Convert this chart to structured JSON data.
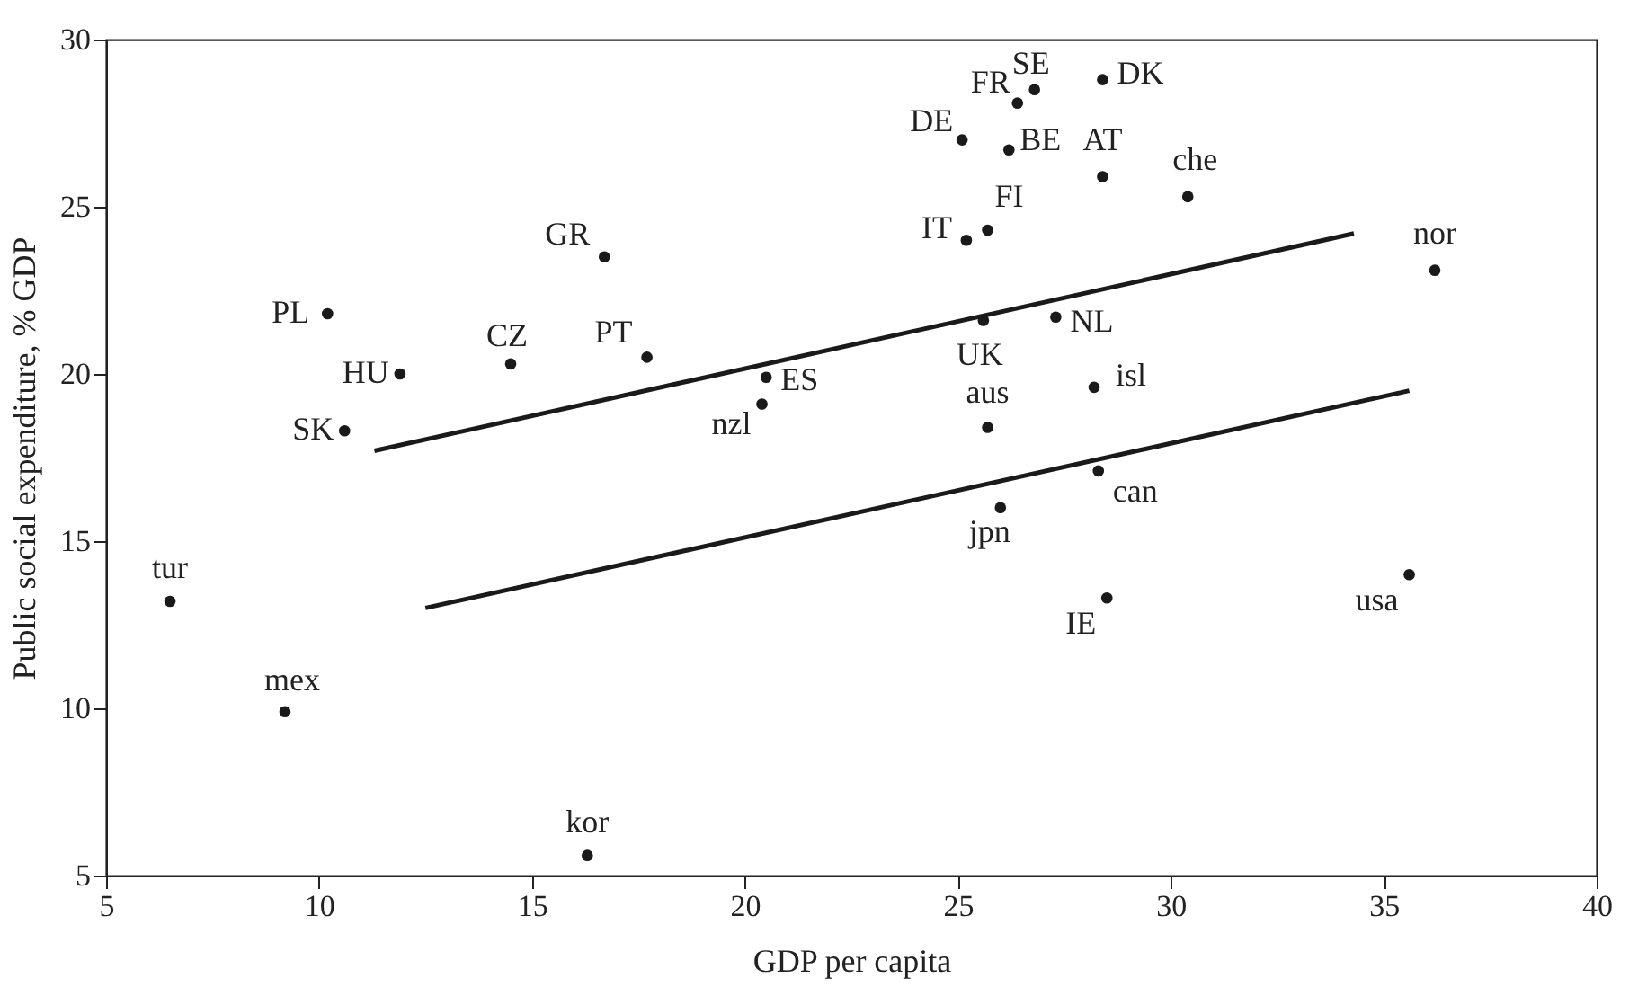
{
  "chart_data": {
    "type": "scatter",
    "xlabel": "GDP per capita",
    "ylabel": "Public social expenditure, % GDP",
    "xlim": [
      5,
      40
    ],
    "xticks": [
      5,
      10,
      15,
      20,
      25,
      30,
      35,
      40
    ],
    "ylim": [
      5,
      30
    ],
    "yticks": [
      5,
      10,
      15,
      20,
      25,
      30
    ],
    "grid": false,
    "marker": "circle",
    "series": [
      {
        "type": "scatter",
        "color": "#1a1a1a",
        "x": [
          16.7,
          10.2,
          11.9,
          10.6,
          14.5,
          17.7,
          20.5,
          20.4,
          26.8,
          28.4,
          26.4,
          25.1,
          26.2,
          28.4,
          30.4,
          25.7,
          25.2,
          36.2,
          25.6,
          27.3,
          28.2,
          25.7,
          28.3,
          26.0,
          28.5,
          35.6,
          6.5,
          9.2,
          16.3
        ],
        "values": [
          23.5,
          21.8,
          20.0,
          18.3,
          20.3,
          20.5,
          19.9,
          19.1,
          28.5,
          28.8,
          28.1,
          27.0,
          26.7,
          25.9,
          25.3,
          24.3,
          24.0,
          23.1,
          21.6,
          21.7,
          19.6,
          18.4,
          17.1,
          16.0,
          13.3,
          14.0,
          13.2,
          9.9,
          5.6
        ]
      },
      {
        "type": "line",
        "color": "#1a1a1a",
        "line_style": "solid",
        "marker": "none",
        "x": [
          11.3,
          34.3
        ],
        "values": [
          17.7,
          24.2
        ]
      },
      {
        "type": "line",
        "color": "#1a1a1a",
        "line_style": "solid",
        "marker": "none",
        "x": [
          12.5,
          35.6
        ],
        "values": [
          13.0,
          19.5
        ]
      }
    ],
    "annotations": [
      {
        "text": "GR",
        "x": 16.7,
        "y": 23.5
      },
      {
        "text": "PL",
        "x": 10.2,
        "y": 21.8
      },
      {
        "text": "HU",
        "x": 11.9,
        "y": 20.0
      },
      {
        "text": "SK",
        "x": 10.6,
        "y": 18.3
      },
      {
        "text": "CZ",
        "x": 14.5,
        "y": 20.3
      },
      {
        "text": "PT",
        "x": 17.7,
        "y": 20.5
      },
      {
        "text": "ES",
        "x": 20.5,
        "y": 19.9
      },
      {
        "text": "nzl",
        "x": 20.4,
        "y": 19.1
      },
      {
        "text": "SE",
        "x": 26.8,
        "y": 28.5
      },
      {
        "text": "DK",
        "x": 28.4,
        "y": 28.8
      },
      {
        "text": "FR",
        "x": 26.4,
        "y": 28.1
      },
      {
        "text": "DE",
        "x": 25.1,
        "y": 27.0
      },
      {
        "text": "BE",
        "x": 26.2,
        "y": 26.7
      },
      {
        "text": "AT",
        "x": 28.4,
        "y": 25.9
      },
      {
        "text": "che",
        "x": 30.4,
        "y": 25.3
      },
      {
        "text": "FI",
        "x": 25.7,
        "y": 24.3
      },
      {
        "text": "IT",
        "x": 25.2,
        "y": 24.0
      },
      {
        "text": "nor",
        "x": 36.2,
        "y": 23.1
      },
      {
        "text": "UK",
        "x": 25.6,
        "y": 21.6
      },
      {
        "text": "NL",
        "x": 27.3,
        "y": 21.7
      },
      {
        "text": "isl",
        "x": 28.2,
        "y": 19.6
      },
      {
        "text": "aus",
        "x": 25.7,
        "y": 18.4
      },
      {
        "text": "can",
        "x": 28.3,
        "y": 17.1
      },
      {
        "text": "jpn",
        "x": 26.0,
        "y": 16.0
      },
      {
        "text": "IE",
        "x": 28.5,
        "y": 13.3
      },
      {
        "text": "usa",
        "x": 35.6,
        "y": 14.0
      },
      {
        "text": "tur",
        "x": 6.5,
        "y": 13.2
      },
      {
        "text": "mex",
        "x": 9.2,
        "y": 9.9
      },
      {
        "text": "kor",
        "x": 16.3,
        "y": 5.6
      }
    ]
  }
}
